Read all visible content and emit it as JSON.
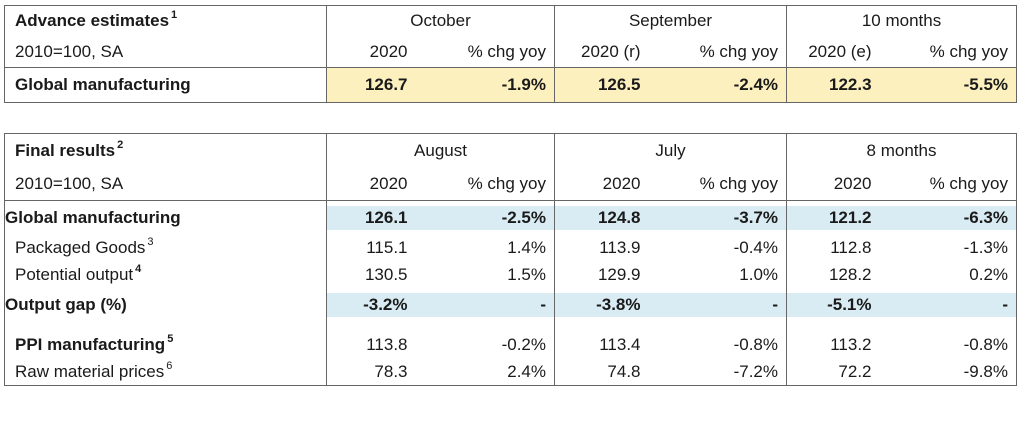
{
  "advance": {
    "title": "Advance estimates",
    "title_sup": "1",
    "base": "2010=100, SA",
    "periods": [
      {
        "label": "October",
        "col_value": "2020",
        "col_chg": "% chg yoy"
      },
      {
        "label": "September",
        "col_value": "2020 (r)",
        "col_chg": "% chg yoy"
      },
      {
        "label": "10 months",
        "col_value": "2020 (e)",
        "col_chg": "% chg yoy"
      }
    ],
    "rows": [
      {
        "label": "Global manufacturing",
        "values": [
          "126.7",
          "-1.9%",
          "126.5",
          "-2.4%",
          "122.3",
          "-5.5%"
        ],
        "highlight": "#fcf1be"
      }
    ]
  },
  "final": {
    "title": "Final results",
    "title_sup": "2",
    "base": "2010=100, SA",
    "periods": [
      {
        "label": "August",
        "col_value": "2020",
        "col_chg": "% chg yoy"
      },
      {
        "label": "July",
        "col_value": "2020",
        "col_chg": "% chg yoy"
      },
      {
        "label": "8 months",
        "col_value": "2020",
        "col_chg": "% chg yoy"
      }
    ],
    "rows": [
      {
        "label": "Global manufacturing",
        "sup": "",
        "values": [
          "126.1",
          "-2.5%",
          "124.8",
          "-3.7%",
          "121.2",
          "-6.3%"
        ]
      },
      {
        "label": "Packaged Goods",
        "sup": "3",
        "values": [
          "115.1",
          "1.4%",
          "113.9",
          "-0.4%",
          "112.8",
          "-1.3%"
        ]
      },
      {
        "label": "Potential output",
        "sup": "4",
        "values": [
          "130.5",
          "1.5%",
          "129.9",
          "1.0%",
          "128.2",
          "0.2%"
        ]
      },
      {
        "label": "Output gap (%)",
        "sup": "",
        "values": [
          "-3.2%",
          "-",
          "-3.8%",
          "-",
          "-5.1%",
          "-"
        ]
      },
      {
        "label": "PPI manufacturing",
        "sup": "5",
        "values": [
          "113.8",
          "-0.2%",
          "113.4",
          "-0.8%",
          "113.2",
          "-0.8%"
        ]
      },
      {
        "label": "Raw material prices",
        "sup": "6",
        "values": [
          "78.3",
          "2.4%",
          "74.8",
          "-7.2%",
          "72.2",
          "-9.8%"
        ]
      }
    ]
  },
  "colors": {
    "advance_highlight": "#fcf1be",
    "final_highlight": "#d9ecf3",
    "border": "#666666"
  }
}
